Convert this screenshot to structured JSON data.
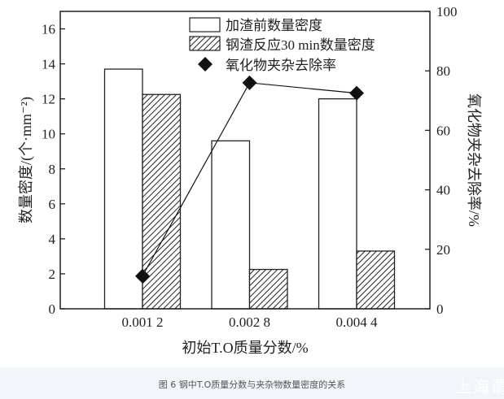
{
  "chart_data": {
    "type": "bar",
    "categories": [
      "0.001 2",
      "0.002 8",
      "0.004 4"
    ],
    "xlabel": "初始T.O质量分数/%",
    "ylabel": "数量密度/(个·mm⁻²)",
    "y2label": "氧化物夹杂去除率/%",
    "ylim": [
      0,
      17
    ],
    "y2lim": [
      0,
      100
    ],
    "yticks": [
      0,
      2,
      4,
      6,
      8,
      10,
      12,
      14,
      16
    ],
    "y2ticks": [
      0,
      20,
      40,
      60,
      80,
      100
    ],
    "legend_position": "top-right",
    "series": [
      {
        "name": "加渣前数量密度",
        "kind": "bar",
        "fill": "white",
        "axis": "left",
        "values": [
          13.7,
          9.6,
          12.0
        ]
      },
      {
        "name": "钢渣反应30 min数量密度",
        "kind": "bar",
        "fill": "hatched",
        "axis": "left",
        "values": [
          12.25,
          2.25,
          3.3
        ]
      },
      {
        "name": "氧化物夹杂去除率",
        "kind": "line",
        "marker": "diamond",
        "axis": "right",
        "values": [
          11,
          76,
          72.5
        ]
      }
    ]
  },
  "caption": "图 6 钢中T.O质量分数与夹杂物数量密度的关系",
  "watermark": "上海谓"
}
